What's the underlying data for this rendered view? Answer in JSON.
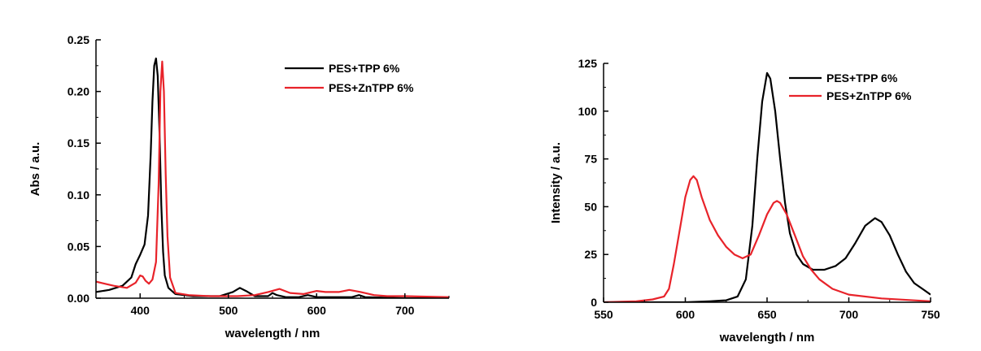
{
  "chart_data": [
    {
      "type": "line",
      "xlabel": "wavelength / nm",
      "ylabel": "Abs / a.u.",
      "xlim": [
        350,
        750
      ],
      "ylim": [
        0,
        0.25
      ],
      "xticks": [
        400,
        500,
        600,
        700
      ],
      "xtick_labels": [
        "400",
        "500",
        "600",
        "700"
      ],
      "yticks": [
        0,
        0.05,
        0.1,
        0.15,
        0.2,
        0.25
      ],
      "ytick_labels": [
        "0.00",
        "0.05",
        "0.10",
        "0.15",
        "0.20",
        "0.25"
      ],
      "grid": false,
      "legend_position": "top-right",
      "series": [
        {
          "name": "PES+TPP 6%",
          "color": "#000000",
          "points": [
            [
              350,
              0.006
            ],
            [
              365,
              0.008
            ],
            [
              380,
              0.012
            ],
            [
              390,
              0.02
            ],
            [
              395,
              0.033
            ],
            [
              400,
              0.042
            ],
            [
              405,
              0.052
            ],
            [
              409,
              0.08
            ],
            [
              412,
              0.14
            ],
            [
              414,
              0.19
            ],
            [
              416,
              0.225
            ],
            [
              418,
              0.232
            ],
            [
              420,
              0.215
            ],
            [
              422,
              0.16
            ],
            [
              424,
              0.09
            ],
            [
              426,
              0.045
            ],
            [
              428,
              0.022
            ],
            [
              432,
              0.01
            ],
            [
              440,
              0.004
            ],
            [
              460,
              0.002
            ],
            [
              490,
              0.002
            ],
            [
              505,
              0.006
            ],
            [
              513,
              0.01
            ],
            [
              520,
              0.007
            ],
            [
              530,
              0.002
            ],
            [
              545,
              0.002
            ],
            [
              550,
              0.005
            ],
            [
              555,
              0.003
            ],
            [
              565,
              0.001
            ],
            [
              580,
              0.001
            ],
            [
              590,
              0.003
            ],
            [
              600,
              0.001
            ],
            [
              620,
              0.001
            ],
            [
              640,
              0.001
            ],
            [
              648,
              0.003
            ],
            [
              655,
              0.001
            ],
            [
              700,
              0.0
            ],
            [
              750,
              0.0
            ]
          ]
        },
        {
          "name": "PES+ZnTPP 6%",
          "color": "#e8232a",
          "points": [
            [
              350,
              0.016
            ],
            [
              360,
              0.014
            ],
            [
              370,
              0.012
            ],
            [
              385,
              0.01
            ],
            [
              395,
              0.015
            ],
            [
              400,
              0.022
            ],
            [
              403,
              0.021
            ],
            [
              406,
              0.017
            ],
            [
              410,
              0.014
            ],
            [
              414,
              0.018
            ],
            [
              418,
              0.035
            ],
            [
              421,
              0.11
            ],
            [
              423,
              0.2
            ],
            [
              425,
              0.229
            ],
            [
              427,
              0.2
            ],
            [
              429,
              0.12
            ],
            [
              431,
              0.06
            ],
            [
              434,
              0.02
            ],
            [
              440,
              0.005
            ],
            [
              455,
              0.003
            ],
            [
              480,
              0.002
            ],
            [
              510,
              0.002
            ],
            [
              530,
              0.003
            ],
            [
              545,
              0.006
            ],
            [
              558,
              0.009
            ],
            [
              570,
              0.005
            ],
            [
              585,
              0.004
            ],
            [
              600,
              0.007
            ],
            [
              610,
              0.006
            ],
            [
              625,
              0.006
            ],
            [
              637,
              0.008
            ],
            [
              650,
              0.006
            ],
            [
              665,
              0.003
            ],
            [
              680,
              0.002
            ],
            [
              700,
              0.002
            ],
            [
              750,
              0.001
            ]
          ]
        }
      ]
    },
    {
      "type": "line",
      "xlabel": "wavelength / nm",
      "ylabel": "Intensity / a.u.",
      "xlim": [
        550,
        750
      ],
      "ylim": [
        0,
        125
      ],
      "xticks": [
        550,
        600,
        650,
        700,
        750
      ],
      "xtick_labels": [
        "550",
        "600",
        "650",
        "700",
        "750"
      ],
      "yticks": [
        0,
        25,
        50,
        75,
        100,
        125
      ],
      "ytick_labels": [
        "0",
        "25",
        "50",
        "75",
        "100",
        "125"
      ],
      "grid": false,
      "legend_position": "top-right",
      "series": [
        {
          "name": "PES+TPP 6%",
          "color": "#000000",
          "points": [
            [
              550,
              0
            ],
            [
              600,
              0
            ],
            [
              615,
              0.5
            ],
            [
              625,
              1
            ],
            [
              632,
              3
            ],
            [
              637,
              12
            ],
            [
              641,
              40
            ],
            [
              644,
              75
            ],
            [
              647,
              105
            ],
            [
              650,
              120
            ],
            [
              652,
              117
            ],
            [
              655,
              100
            ],
            [
              658,
              75
            ],
            [
              661,
              52
            ],
            [
              664,
              36
            ],
            [
              668,
              25
            ],
            [
              672,
              20
            ],
            [
              678,
              17
            ],
            [
              685,
              17
            ],
            [
              692,
              19
            ],
            [
              698,
              23
            ],
            [
              704,
              31
            ],
            [
              710,
              40
            ],
            [
              716,
              44
            ],
            [
              720,
              42
            ],
            [
              725,
              35
            ],
            [
              730,
              25
            ],
            [
              735,
              16
            ],
            [
              740,
              10
            ],
            [
              745,
              7
            ],
            [
              750,
              4
            ]
          ]
        },
        {
          "name": "PES+ZnTPP 6%",
          "color": "#e8232a",
          "points": [
            [
              550,
              0
            ],
            [
              570,
              0.5
            ],
            [
              580,
              1.5
            ],
            [
              587,
              3
            ],
            [
              590,
              7
            ],
            [
              593,
              20
            ],
            [
              597,
              40
            ],
            [
              600,
              55
            ],
            [
              603,
              64
            ],
            [
              605,
              66
            ],
            [
              607,
              64
            ],
            [
              610,
              55
            ],
            [
              615,
              43
            ],
            [
              620,
              35
            ],
            [
              625,
              29
            ],
            [
              630,
              25
            ],
            [
              635,
              23
            ],
            [
              640,
              25
            ],
            [
              645,
              35
            ],
            [
              650,
              46
            ],
            [
              654,
              52
            ],
            [
              656,
              53
            ],
            [
              658,
              52
            ],
            [
              662,
              46
            ],
            [
              667,
              35
            ],
            [
              672,
              24
            ],
            [
              677,
              17
            ],
            [
              682,
              12
            ],
            [
              690,
              7
            ],
            [
              700,
              4
            ],
            [
              720,
              2
            ],
            [
              750,
              0.5
            ]
          ]
        }
      ]
    }
  ]
}
